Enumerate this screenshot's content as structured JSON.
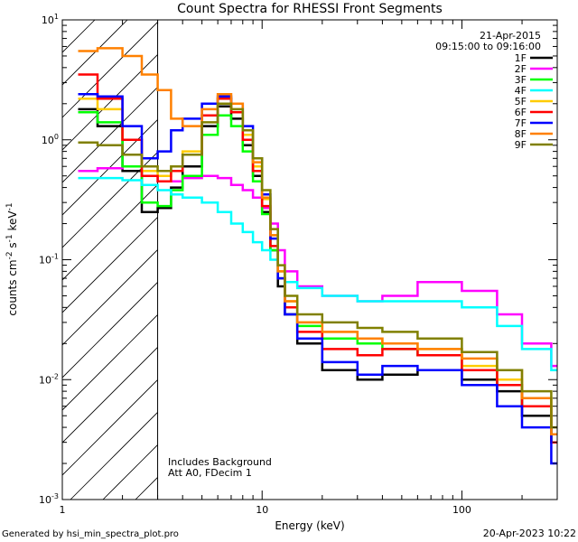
{
  "chart_data": {
    "type": "line",
    "title": "Count Spectra for RHESSI Front Segments",
    "xlabel": "Energy (keV)",
    "ylabel_main": "counts cm",
    "ylabel_sup1": "-2",
    "ylabel_mid": " s",
    "ylabel_sup2": "-1",
    "ylabel_end": " keV",
    "ylabel_sup3": "-1",
    "xscale": "log",
    "yscale": "log",
    "xlim": [
      1,
      300
    ],
    "ylim": [
      0.001,
      10
    ],
    "x_ticks": [
      {
        "value": 1,
        "label": "1"
      },
      {
        "value": 10,
        "label": "10"
      },
      {
        "value": 100,
        "label": "100"
      }
    ],
    "y_ticks": [
      {
        "value": 0.001,
        "base": "10",
        "exp": "-3"
      },
      {
        "value": 0.01,
        "base": "10",
        "exp": "-2"
      },
      {
        "value": 0.1,
        "base": "10",
        "exp": "-1"
      },
      {
        "value": 1,
        "base": "10",
        "exp": "0"
      },
      {
        "value": 10,
        "base": "10",
        "exp": "1"
      }
    ],
    "legend_position": "top-right",
    "date": "21-Apr-2015",
    "time_range": "09:15:00 to 09:16:00",
    "attenuator_cutoff_keV": 3,
    "annotations": [
      "Includes Background",
      "Att A0, FDecim 1"
    ],
    "footer_left": "Generated by hsi_min_spectra_plot.pro",
    "footer_right": "20-Apr-2023 10:22",
    "series": [
      {
        "name": "1F",
        "color": "#000000",
        "x": [
          1.2,
          1.5,
          2,
          2.5,
          3,
          3.5,
          4,
          5,
          6,
          7,
          8,
          9,
          10,
          11,
          12,
          13,
          15,
          20,
          30,
          40,
          60,
          100,
          150,
          200,
          280
        ],
        "y": [
          1.8,
          1.3,
          0.55,
          0.25,
          0.27,
          0.4,
          0.6,
          1.3,
          1.9,
          1.5,
          0.9,
          0.5,
          0.25,
          0.12,
          0.06,
          0.035,
          0.02,
          0.012,
          0.01,
          0.011,
          0.012,
          0.01,
          0.008,
          0.005,
          0.003
        ]
      },
      {
        "name": "2F",
        "color": "#ff00ff",
        "x": [
          1.2,
          1.5,
          2,
          2.5,
          3,
          3.5,
          4,
          5,
          6,
          7,
          8,
          9,
          10,
          11,
          12,
          13,
          15,
          20,
          30,
          40,
          60,
          100,
          150,
          200,
          280
        ],
        "y": [
          0.55,
          0.58,
          0.6,
          0.5,
          0.45,
          0.45,
          0.48,
          0.5,
          0.48,
          0.42,
          0.38,
          0.33,
          0.27,
          0.2,
          0.12,
          0.08,
          0.06,
          0.05,
          0.045,
          0.05,
          0.065,
          0.055,
          0.035,
          0.02,
          0.013
        ]
      },
      {
        "name": "3F",
        "color": "#00ff00",
        "x": [
          1.2,
          1.5,
          2,
          2.5,
          3,
          3.5,
          4,
          5,
          6,
          7,
          8,
          9,
          10,
          11,
          12,
          13,
          15,
          20,
          30,
          40,
          60,
          100,
          150,
          200,
          280
        ],
        "y": [
          1.7,
          1.4,
          0.6,
          0.3,
          0.28,
          0.38,
          0.5,
          1.1,
          1.6,
          1.3,
          0.8,
          0.45,
          0.24,
          0.12,
          0.07,
          0.04,
          0.028,
          0.022,
          0.02,
          0.018,
          0.016,
          0.012,
          0.009,
          0.006,
          0.003
        ]
      },
      {
        "name": "4F",
        "color": "#00ffff",
        "x": [
          1.2,
          1.5,
          2,
          2.5,
          3,
          3.5,
          4,
          5,
          6,
          7,
          8,
          9,
          10,
          11,
          12,
          13,
          15,
          20,
          30,
          40,
          60,
          100,
          150,
          200,
          280
        ],
        "y": [
          0.48,
          0.48,
          0.46,
          0.42,
          0.38,
          0.35,
          0.33,
          0.3,
          0.25,
          0.2,
          0.17,
          0.14,
          0.12,
          0.1,
          0.08,
          0.065,
          0.058,
          0.05,
          0.045,
          0.045,
          0.045,
          0.04,
          0.028,
          0.018,
          0.012
        ]
      },
      {
        "name": "5F",
        "color": "#ffcc00",
        "x": [
          1.2,
          1.5,
          2,
          2.5,
          3,
          3.5,
          4,
          5,
          6,
          7,
          8,
          9,
          10,
          11,
          12,
          13,
          15,
          20,
          30,
          40,
          60,
          100,
          150,
          200,
          280
        ],
        "y": [
          2.2,
          1.8,
          1.0,
          0.55,
          0.5,
          0.6,
          0.8,
          1.6,
          2.2,
          1.8,
          1.1,
          0.6,
          0.32,
          0.16,
          0.08,
          0.045,
          0.03,
          0.025,
          0.022,
          0.02,
          0.018,
          0.013,
          0.01,
          0.007,
          0.0035
        ]
      },
      {
        "name": "6F",
        "color": "#ff0000",
        "x": [
          1.2,
          1.5,
          2,
          2.5,
          3,
          3.5,
          4,
          5,
          6,
          7,
          8,
          9,
          10,
          11,
          12,
          13,
          15,
          20,
          30,
          40,
          60,
          100,
          150,
          200,
          280
        ],
        "y": [
          3.5,
          2.2,
          1.0,
          0.5,
          0.45,
          0.55,
          0.75,
          1.6,
          2.2,
          1.7,
          1.0,
          0.55,
          0.28,
          0.13,
          0.07,
          0.04,
          0.025,
          0.018,
          0.016,
          0.018,
          0.016,
          0.012,
          0.009,
          0.006,
          0.003
        ]
      },
      {
        "name": "7F",
        "color": "#0000ff",
        "x": [
          1.2,
          1.5,
          2,
          2.5,
          3,
          3.5,
          4,
          5,
          6,
          7,
          8,
          9,
          10,
          11,
          12,
          13,
          15,
          20,
          30,
          40,
          60,
          100,
          150,
          200,
          280
        ],
        "y": [
          2.4,
          2.3,
          1.3,
          0.7,
          0.8,
          1.2,
          1.5,
          2.0,
          2.3,
          2.0,
          1.3,
          0.7,
          0.35,
          0.15,
          0.07,
          0.035,
          0.022,
          0.014,
          0.011,
          0.013,
          0.012,
          0.009,
          0.006,
          0.004,
          0.002
        ]
      },
      {
        "name": "8F",
        "color": "#ff8000",
        "x": [
          1.2,
          1.5,
          2,
          2.5,
          3,
          3.5,
          4,
          5,
          6,
          7,
          8,
          9,
          10,
          11,
          12,
          13,
          15,
          20,
          30,
          40,
          60,
          100,
          150,
          200,
          280
        ],
        "y": [
          5.5,
          5.8,
          5.0,
          3.5,
          2.6,
          1.5,
          1.3,
          1.8,
          2.4,
          2.0,
          1.2,
          0.65,
          0.33,
          0.16,
          0.08,
          0.045,
          0.03,
          0.025,
          0.022,
          0.02,
          0.018,
          0.015,
          0.012,
          0.007,
          0.0035
        ]
      },
      {
        "name": "9F",
        "color": "#808000",
        "x": [
          1.2,
          1.5,
          2,
          2.5,
          3,
          3.5,
          4,
          5,
          6,
          7,
          8,
          9,
          10,
          11,
          12,
          13,
          15,
          20,
          30,
          40,
          60,
          100,
          150,
          200,
          280
        ],
        "y": [
          0.95,
          0.9,
          0.75,
          0.6,
          0.55,
          0.6,
          0.75,
          1.4,
          2.0,
          1.8,
          1.2,
          0.7,
          0.38,
          0.18,
          0.09,
          0.05,
          0.035,
          0.03,
          0.027,
          0.025,
          0.022,
          0.017,
          0.012,
          0.008,
          0.004
        ]
      }
    ]
  }
}
